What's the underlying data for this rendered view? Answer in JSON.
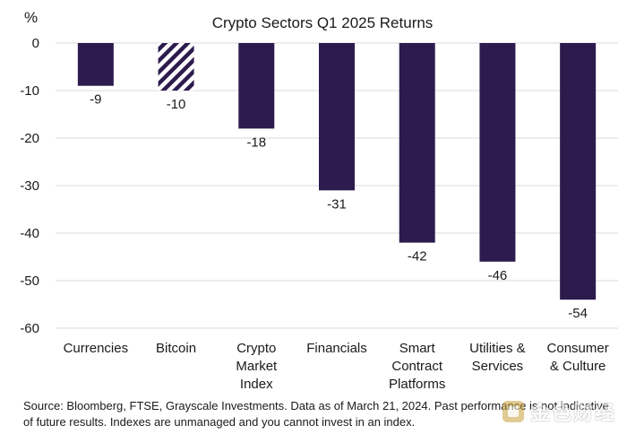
{
  "chart_data": {
    "type": "bar",
    "title": "Crypto Sectors Q1 2025 Returns",
    "y_unit": "%",
    "ylim": [
      -60,
      0
    ],
    "yticks": [
      "0",
      "-10",
      "-20",
      "-30",
      "-40",
      "-50",
      "-60"
    ],
    "grid": "horizontal",
    "categories": [
      [
        "Currencies"
      ],
      [
        "Bitcoin"
      ],
      [
        "Crypto",
        "Market",
        "Index"
      ],
      [
        "Financials"
      ],
      [
        "Smart",
        "Contract",
        "Platforms"
      ],
      [
        "Utilities &",
        "Services"
      ],
      [
        "Consumer",
        "& Culture"
      ]
    ],
    "values": [
      -9,
      -10,
      -18,
      -31,
      -42,
      -46,
      -54
    ],
    "data_labels": [
      "-9",
      "-10",
      "-18",
      "-31",
      "-42",
      "-46",
      "-54"
    ],
    "bar_patterns": [
      "solid",
      "hatched",
      "solid",
      "solid",
      "solid",
      "solid",
      "solid"
    ],
    "colors": {
      "bar": "#2d1b4e",
      "grid": "#d9d9d9",
      "text": "#1a1a1a"
    }
  },
  "source_note": "Source: Bloomberg, FTSE, Grayscale Investments. Data as of March 21, 2024. Past performance is not indicative of future results. Indexes are unmanaged and you cannot invest in an index.",
  "watermark": {
    "text": "金色财经",
    "icon": "golden-finance-logo-icon"
  }
}
